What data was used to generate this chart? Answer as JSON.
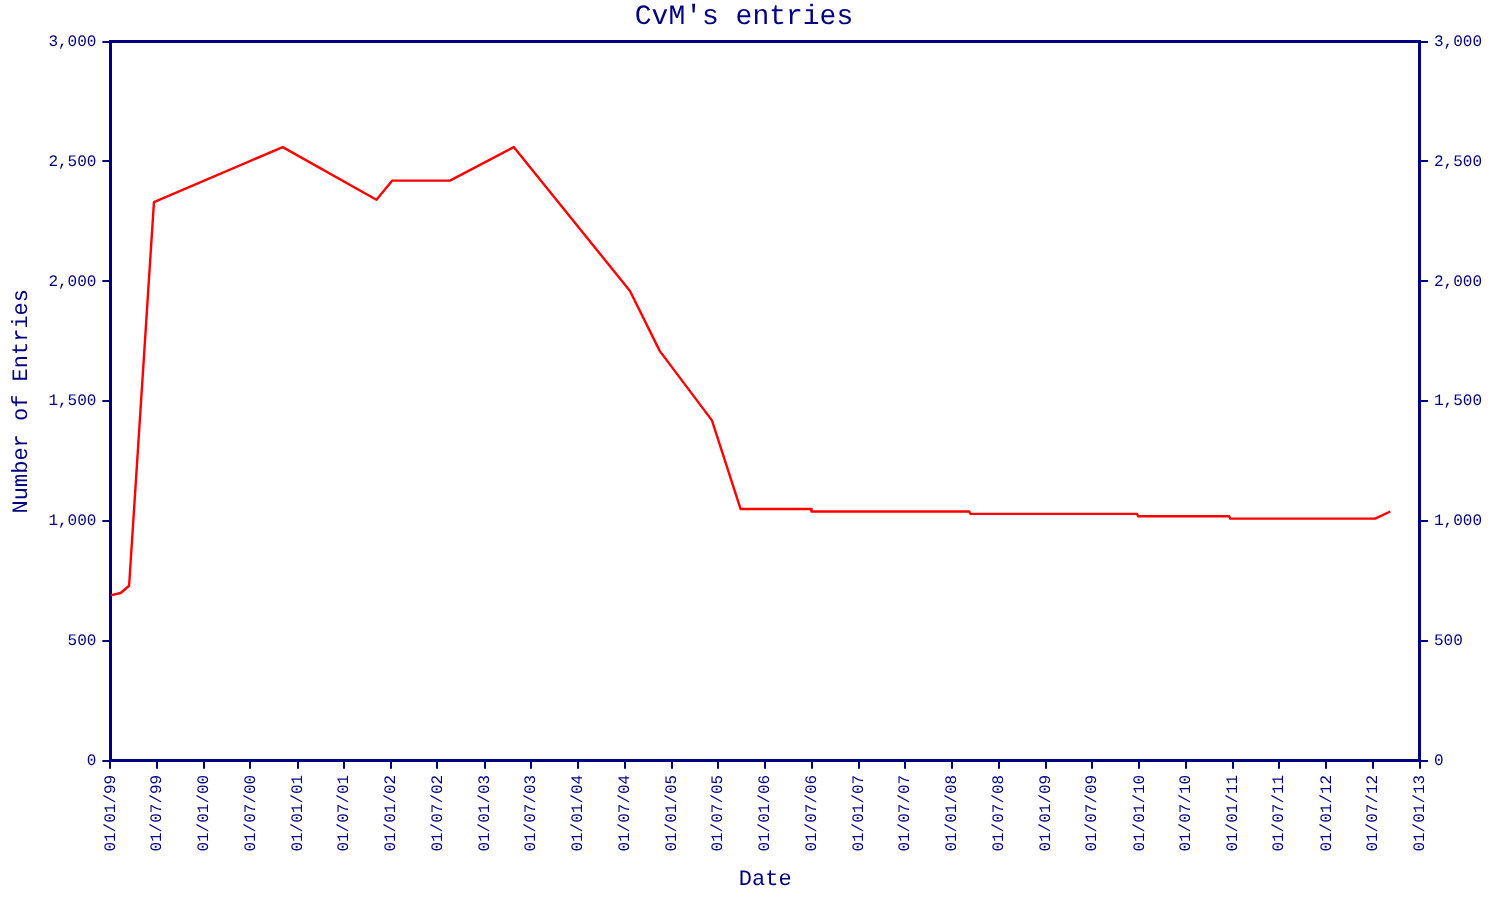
{
  "chart_data": {
    "type": "line",
    "title": "CvM's entries",
    "xlabel": "Date",
    "ylabel": "Number of Entries",
    "x": [
      "1999-01-01",
      "1999-02-10",
      "1999-03-15",
      "1999-06-20",
      "2000-11-04",
      "2001-11-05",
      "2002-01-05",
      "2002-08-19",
      "2003-04-25",
      "2004-07-22",
      "2004-11-15",
      "2005-06-07",
      "2005-09-27",
      "2006-06-28",
      "2006-07-01",
      "2008-03-08",
      "2008-03-12",
      "2009-12-23",
      "2009-12-27",
      "2010-12-18",
      "2010-12-22",
      "2012-07-10",
      "2012-09-07"
    ],
    "series": [
      {
        "color": "#ff0000",
        "values": [
          690,
          700,
          730,
          2330,
          2560,
          2340,
          2420,
          2420,
          2560,
          1960,
          1710,
          1420,
          1050,
          1050,
          1040,
          1040,
          1030,
          1030,
          1020,
          1020,
          1010,
          1010,
          1040
        ]
      }
    ],
    "xlim": [
      "1999-01-01",
      "2013-01-01"
    ],
    "xticks": [
      {
        "value": "1999-01-01",
        "label": "01/01/99"
      },
      {
        "value": "1999-07-01",
        "label": "01/07/99"
      },
      {
        "value": "2000-01-01",
        "label": "01/01/00"
      },
      {
        "value": "2000-07-01",
        "label": "01/07/00"
      },
      {
        "value": "2001-01-01",
        "label": "01/01/01"
      },
      {
        "value": "2001-07-01",
        "label": "01/07/01"
      },
      {
        "value": "2002-01-01",
        "label": "01/01/02"
      },
      {
        "value": "2002-07-01",
        "label": "01/07/02"
      },
      {
        "value": "2003-01-01",
        "label": "01/01/03"
      },
      {
        "value": "2003-07-01",
        "label": "01/07/03"
      },
      {
        "value": "2004-01-01",
        "label": "01/01/04"
      },
      {
        "value": "2004-07-01",
        "label": "01/07/04"
      },
      {
        "value": "2005-01-01",
        "label": "01/01/05"
      },
      {
        "value": "2005-07-01",
        "label": "01/07/05"
      },
      {
        "value": "2006-01-01",
        "label": "01/01/06"
      },
      {
        "value": "2006-07-01",
        "label": "01/07/06"
      },
      {
        "value": "2007-01-01",
        "label": "01/01/07"
      },
      {
        "value": "2007-07-01",
        "label": "01/07/07"
      },
      {
        "value": "2008-01-01",
        "label": "01/01/08"
      },
      {
        "value": "2008-07-01",
        "label": "01/07/08"
      },
      {
        "value": "2009-01-01",
        "label": "01/01/09"
      },
      {
        "value": "2009-07-01",
        "label": "01/07/09"
      },
      {
        "value": "2010-01-01",
        "label": "01/01/10"
      },
      {
        "value": "2010-07-01",
        "label": "01/07/10"
      },
      {
        "value": "2011-01-01",
        "label": "01/01/11"
      },
      {
        "value": "2011-07-01",
        "label": "01/07/11"
      },
      {
        "value": "2012-01-01",
        "label": "01/01/12"
      },
      {
        "value": "2012-07-01",
        "label": "01/07/12"
      },
      {
        "value": "2013-01-01",
        "label": "01/01/13"
      }
    ],
    "ylim": [
      0,
      3000
    ],
    "yticks": [
      0,
      500,
      {
        "value": 1000,
        "label": "1,000"
      },
      {
        "value": 1500,
        "label": "1,500"
      },
      {
        "value": 2000,
        "label": "2,000"
      },
      {
        "value": 2500,
        "label": "2,500"
      },
      {
        "value": 3000,
        "label": "3,000"
      }
    ],
    "y2lim": [
      0,
      3000
    ],
    "y2ticks": [
      0,
      500,
      {
        "value": 1000,
        "label": "1,000"
      },
      {
        "value": 1500,
        "label": "1,500"
      },
      {
        "value": 2000,
        "label": "2,000"
      },
      {
        "value": 2500,
        "label": "2,500"
      },
      {
        "value": 3000,
        "label": "3,000"
      }
    ],
    "grid": false,
    "legend": false,
    "marker": "none",
    "line_style": "solid"
  }
}
